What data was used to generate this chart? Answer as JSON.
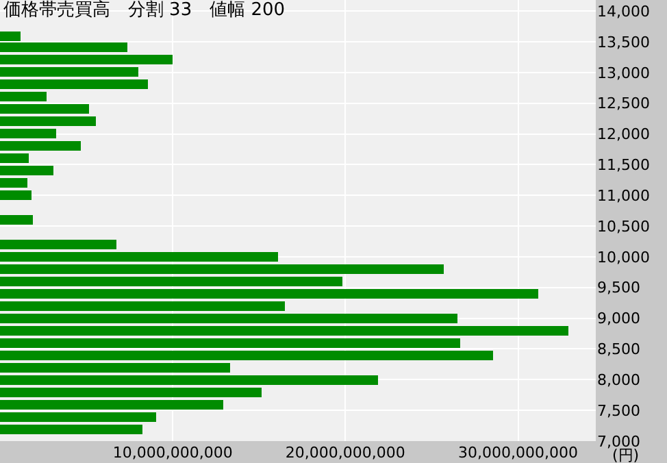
{
  "chart_data": {
    "type": "bar",
    "orientation": "horizontal",
    "title": "価格帯売買高　分割 33　値幅 200",
    "x": [
      7200,
      7400,
      7600,
      7800,
      8000,
      8200,
      8400,
      8600,
      8800,
      9000,
      9200,
      9400,
      9600,
      9800,
      10000,
      10200,
      10400,
      10600,
      10800,
      11000,
      11200,
      11400,
      11600,
      11800,
      12000,
      12200,
      12400,
      12600,
      12800,
      13000,
      13200,
      13400,
      13600
    ],
    "values": [
      8240000000,
      9030000000,
      12900000000,
      15110000000,
      21900000000,
      13290000000,
      28540000000,
      26640000000,
      32880000000,
      26490000000,
      16530000000,
      31150000000,
      19850000000,
      25700000000,
      16060000000,
      6740000000,
      0,
      1920000000,
      0,
      1840000000,
      1600000000,
      3100000000,
      1680000000,
      4680000000,
      3260000000,
      5550000000,
      5160000000,
      2710000000,
      8550000000,
      8000000000,
      9980000000,
      7370000000,
      1210000000
    ],
    "color": "#008c00",
    "xlim": [
      0,
      34500000000
    ],
    "xticks": [
      {
        "value": 10000000000,
        "label": "10,000,000,000"
      },
      {
        "value": 20000000000,
        "label": "20,000,000,000"
      },
      {
        "value": 30000000000,
        "label": "30,000,000,000"
      }
    ],
    "ylim": [
      7000,
      14180
    ],
    "yticks": [
      {
        "value": 7000,
        "label": "7,000"
      },
      {
        "value": 7500,
        "label": "7,500"
      },
      {
        "value": 8000,
        "label": "8,000"
      },
      {
        "value": 8500,
        "label": "8,500"
      },
      {
        "value": 9000,
        "label": "9,000"
      },
      {
        "value": 9500,
        "label": "9,500"
      },
      {
        "value": 10000,
        "label": "10,000"
      },
      {
        "value": 10500,
        "label": "10,500"
      },
      {
        "value": 11000,
        "label": "11,000"
      },
      {
        "value": 11500,
        "label": "11,500"
      },
      {
        "value": 12000,
        "label": "12,000"
      },
      {
        "value": 12500,
        "label": "12,500"
      },
      {
        "value": 13000,
        "label": "13,000"
      },
      {
        "value": 13500,
        "label": "13,500"
      },
      {
        "value": 14000,
        "label": "14,000"
      }
    ],
    "annotations": [
      "(円)"
    ],
    "grid": true,
    "legend": false
  }
}
